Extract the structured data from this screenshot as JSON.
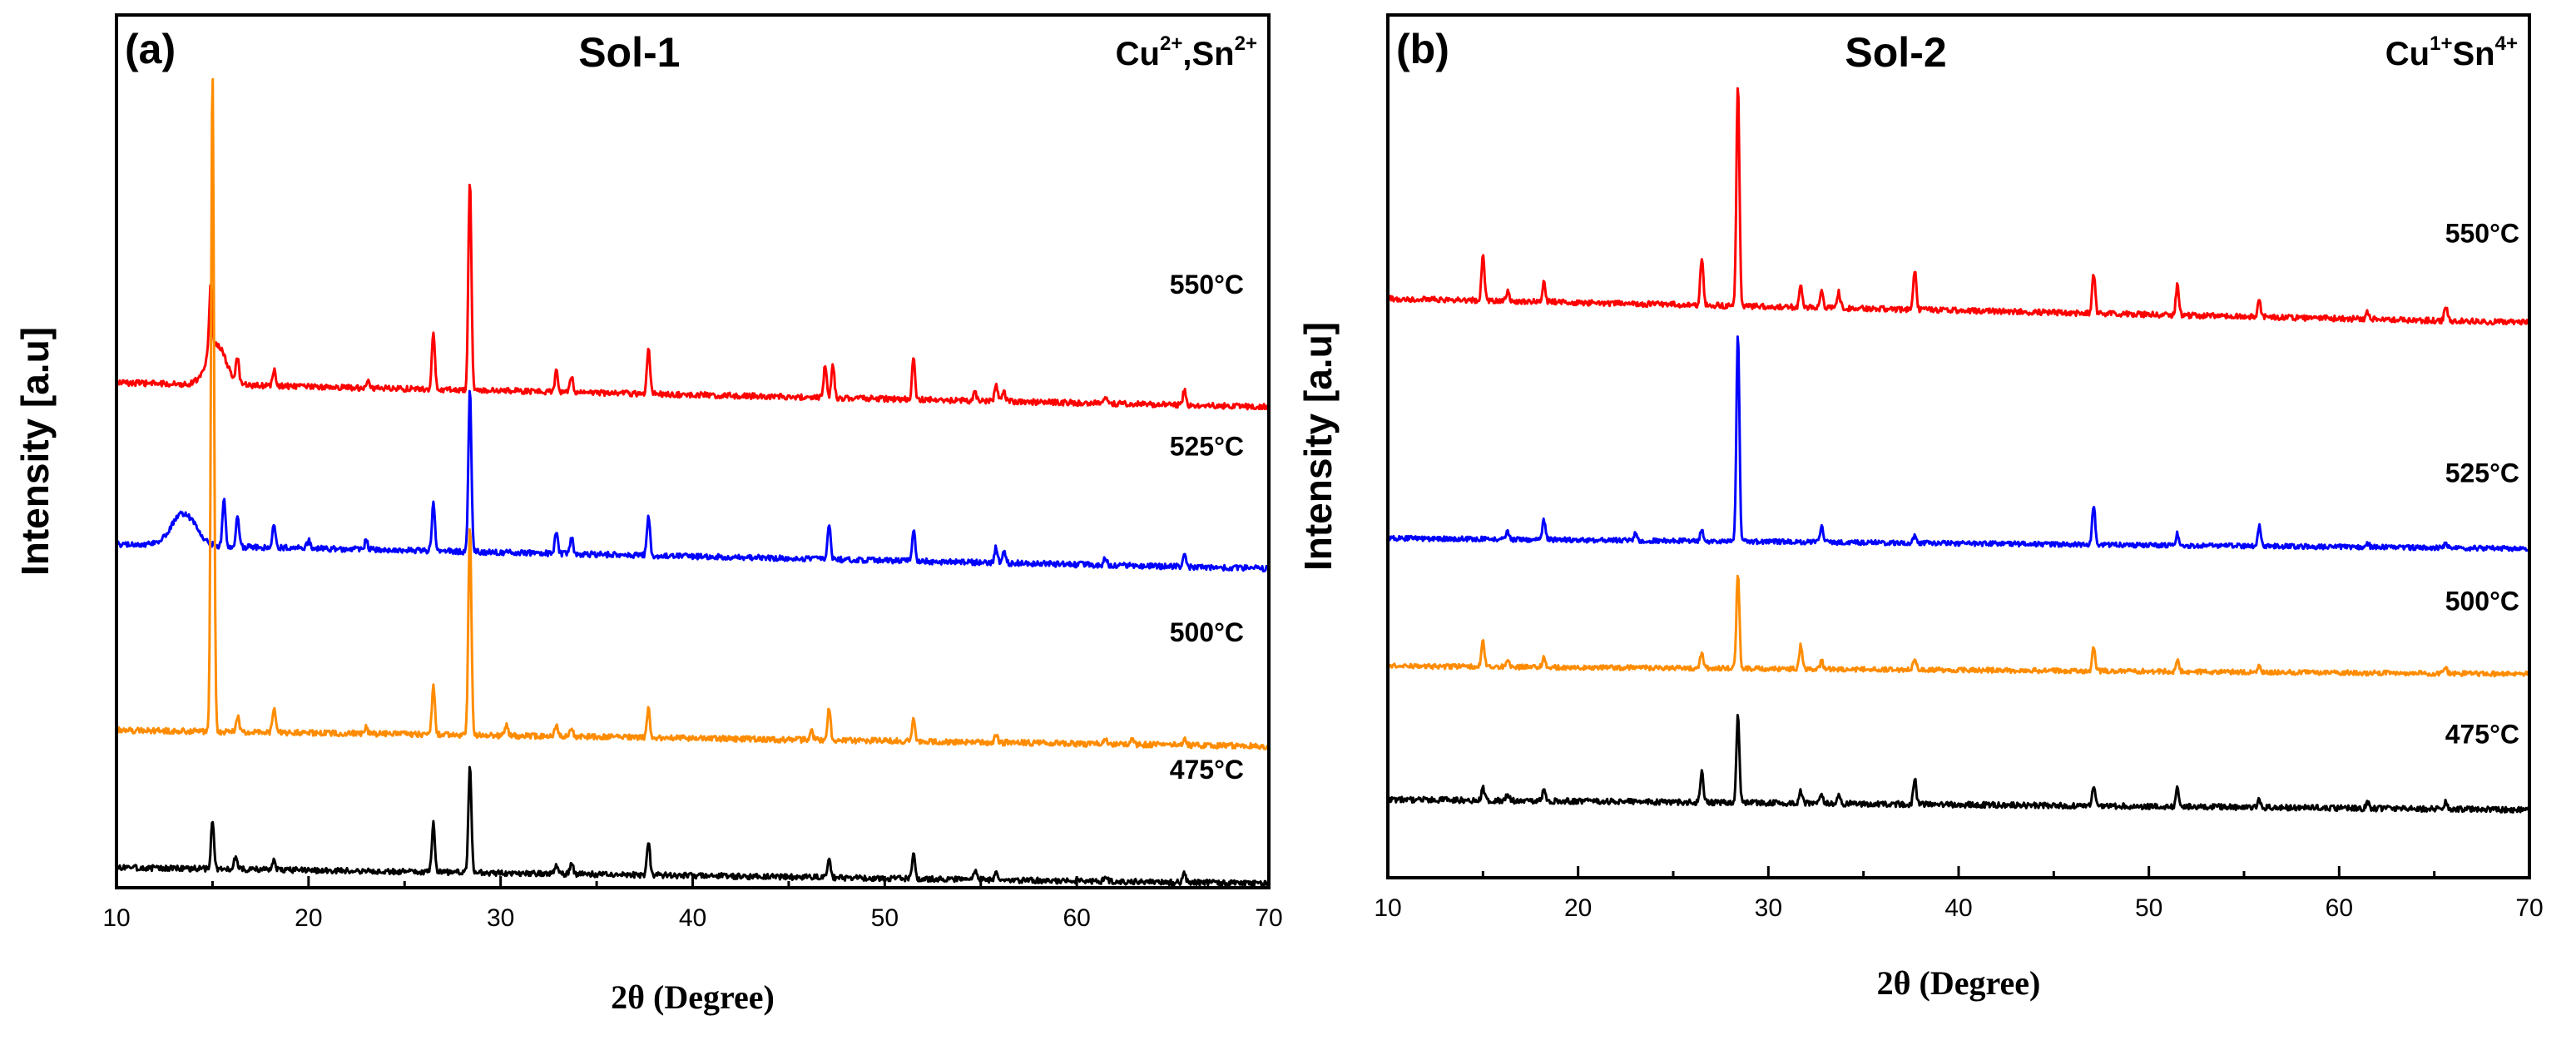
{
  "chart_data": [
    {
      "type": "line",
      "panel_label": "(a)",
      "title": "Sol-1",
      "ions": [
        {
          "base": "Cu",
          "sup": "2+",
          "sep": ","
        },
        {
          "base": "Sn",
          "sup": "2+",
          "sep": ""
        }
      ],
      "xlabel": "2θ (Degree)",
      "ylabel": "Intensity [a.u]",
      "xlim": [
        10,
        70
      ],
      "xticks": [
        10,
        20,
        30,
        40,
        50,
        60,
        70
      ],
      "ylim": [
        0,
        108
      ],
      "series": [
        {
          "name": "550°C",
          "color": "#ff0000",
          "baseline_start": 62.5,
          "baseline_end": 59.5,
          "noise": 0.35,
          "bump": {
            "center": 15.2,
            "width": 0.7,
            "height": 5
          },
          "peaks": [
            [
              14.9,
              8
            ],
            [
              16.3,
              3
            ],
            [
              18.2,
              2
            ],
            [
              23.1,
              1.2
            ],
            [
              26.5,
              7
            ],
            [
              28.4,
              26
            ],
            [
              32.9,
              2.5
            ],
            [
              33.7,
              2
            ],
            [
              37.7,
              6
            ],
            [
              46.9,
              4
            ],
            [
              47.3,
              4
            ],
            [
              51.5,
              5
            ],
            [
              54.7,
              1
            ],
            [
              55.8,
              2
            ],
            [
              56.2,
              1.5
            ],
            [
              61.5,
              1
            ],
            [
              65.6,
              1.8
            ]
          ]
        },
        {
          "name": "525°C",
          "color": "#0000ff",
          "baseline_start": 42.5,
          "baseline_end": 39.5,
          "noise": 0.35,
          "bump": {
            "center": 13.5,
            "width": 0.9,
            "height": 4
          },
          "peaks": [
            [
              15.6,
              6
            ],
            [
              16.3,
              4
            ],
            [
              18.2,
              3
            ],
            [
              20,
              1
            ],
            [
              23,
              1.2
            ],
            [
              26.5,
              6
            ],
            [
              28.4,
              20
            ],
            [
              32.9,
              2.5
            ],
            [
              33.7,
              2
            ],
            [
              37.7,
              5
            ],
            [
              47.1,
              4.5
            ],
            [
              51.5,
              4
            ],
            [
              55.8,
              2
            ],
            [
              56.2,
              1.5
            ],
            [
              61.5,
              1
            ],
            [
              65.6,
              1.5
            ]
          ]
        },
        {
          "name": "500°C",
          "color": "#ff8c00",
          "baseline_start": 19.5,
          "baseline_end": 17.5,
          "noise": 0.35,
          "bump": null,
          "peaks": [
            [
              15,
              82
            ],
            [
              16.3,
              2
            ],
            [
              18.2,
              3
            ],
            [
              23,
              0.8
            ],
            [
              26.5,
              6
            ],
            [
              28.4,
              26
            ],
            [
              30.3,
              1.2
            ],
            [
              32.9,
              1.5
            ],
            [
              33.7,
              1.2
            ],
            [
              37.7,
              3.5
            ],
            [
              46.2,
              1
            ],
            [
              47.1,
              4
            ],
            [
              51.5,
              3
            ],
            [
              55.8,
              1
            ],
            [
              61.5,
              0.8
            ],
            [
              62.9,
              0.8
            ],
            [
              65.6,
              1
            ]
          ]
        },
        {
          "name": "475°C",
          "color": "#000000",
          "baseline_start": 2.5,
          "baseline_end": 0.5,
          "noise": 0.35,
          "bump": null,
          "peaks": [
            [
              15,
              6
            ],
            [
              16.2,
              1.5
            ],
            [
              18.2,
              1.5
            ],
            [
              26.5,
              6
            ],
            [
              28.4,
              13
            ],
            [
              32.9,
              1
            ],
            [
              33.7,
              1.5
            ],
            [
              37.7,
              4
            ],
            [
              47.1,
              2.5
            ],
            [
              51.5,
              3
            ],
            [
              54.7,
              1
            ],
            [
              55.8,
              1
            ],
            [
              61.5,
              0.8
            ],
            [
              65.6,
              1.2
            ]
          ]
        }
      ]
    },
    {
      "type": "line",
      "panel_label": "(b)",
      "title": "Sol-2",
      "ions": [
        {
          "base": "Cu",
          "sup": "1+",
          "sep": ""
        },
        {
          "base": "Sn",
          "sup": "4+",
          "sep": ""
        }
      ],
      "xlabel": "2θ (Degree)",
      "ylabel": "Intensity [a.u]",
      "xlim": [
        10,
        70
      ],
      "xticks": [
        10,
        20,
        30,
        40,
        50,
        60,
        70
      ],
      "ylim": [
        0,
        108
      ],
      "series": [
        {
          "name": "550°C",
          "color": "#ff0000",
          "baseline_start": 72.5,
          "baseline_end": 69.5,
          "noise": 0.35,
          "bump": null,
          "peaks": [
            [
              15,
              5.5
            ],
            [
              16.3,
              1.2
            ],
            [
              18.2,
              2.5
            ],
            [
              26.5,
              6
            ],
            [
              28.4,
              28
            ],
            [
              31.7,
              2.5
            ],
            [
              32.8,
              2
            ],
            [
              33.7,
              2
            ],
            [
              37.7,
              5
            ],
            [
              47.1,
              5
            ],
            [
              51.5,
              4
            ],
            [
              55.8,
              2
            ],
            [
              61.5,
              1
            ],
            [
              65.6,
              2
            ]
          ]
        },
        {
          "name": "525°C",
          "color": "#0000ff",
          "baseline_start": 42.5,
          "baseline_end": 41.2,
          "noise": 0.3,
          "bump": null,
          "peaks": [
            [
              16.3,
              1
            ],
            [
              18.2,
              2.5
            ],
            [
              23,
              0.8
            ],
            [
              26.5,
              1.5
            ],
            [
              28.4,
              26
            ],
            [
              32.8,
              2
            ],
            [
              37.7,
              1
            ],
            [
              47.1,
              5
            ],
            [
              51.5,
              1.5
            ],
            [
              55.8,
              2.5
            ],
            [
              61.5,
              0.5
            ],
            [
              65.6,
              0.5
            ]
          ]
        },
        {
          "name": "500°C",
          "color": "#ff8c00",
          "baseline_start": 26.5,
          "baseline_end": 25.5,
          "noise": 0.3,
          "bump": null,
          "peaks": [
            [
              15,
              3.5
            ],
            [
              16.3,
              0.8
            ],
            [
              18.2,
              1.2
            ],
            [
              26.5,
              2
            ],
            [
              28.4,
              12
            ],
            [
              31.7,
              3
            ],
            [
              32.8,
              1
            ],
            [
              37.7,
              1.5
            ],
            [
              47.1,
              3
            ],
            [
              51.5,
              1.5
            ],
            [
              55.8,
              1
            ],
            [
              65.6,
              0.8
            ]
          ]
        },
        {
          "name": "475°C",
          "color": "#000000",
          "baseline_start": 9.8,
          "baseline_end": 8.5,
          "noise": 0.35,
          "bump": null,
          "peaks": [
            [
              15,
              1.5
            ],
            [
              16.3,
              0.8
            ],
            [
              18.2,
              1.2
            ],
            [
              26.5,
              4
            ],
            [
              28.4,
              11
            ],
            [
              31.7,
              1.5
            ],
            [
              32.8,
              1.2
            ],
            [
              33.7,
              1
            ],
            [
              37.7,
              3
            ],
            [
              47.1,
              2.5
            ],
            [
              51.5,
              2.5
            ],
            [
              55.8,
              1
            ],
            [
              61.5,
              0.8
            ],
            [
              65.6,
              1
            ]
          ]
        }
      ]
    }
  ]
}
